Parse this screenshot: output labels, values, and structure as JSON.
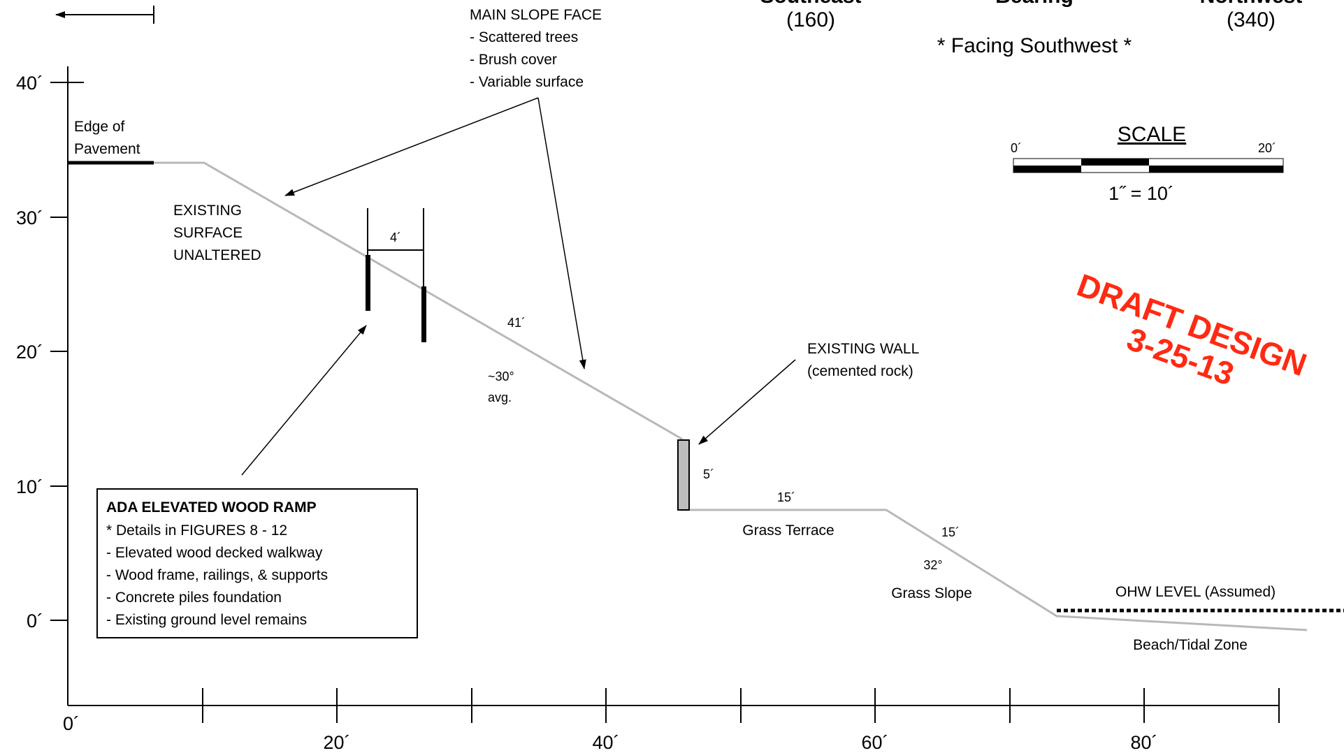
{
  "header": {
    "left_label": "Southeast",
    "left_bearing": "(160)",
    "center_label": "Bearing",
    "right_label": "Northwest",
    "right_bearing": "(340)",
    "facing": "* Facing Southwest *"
  },
  "axes": {
    "y_ticks": [
      "40´",
      "30´",
      "20´",
      "10´",
      "0´"
    ],
    "x_ticks": [
      "0´",
      "20´",
      "40´",
      "60´",
      "80´"
    ]
  },
  "scale": {
    "title": "SCALE",
    "left": "0´",
    "right": "20´",
    "ratio": "1˝ = 10´"
  },
  "stamp": {
    "line1": "DRAFT DESIGN",
    "line2": "3-25-13",
    "color": "#ff2a12"
  },
  "labels": {
    "edge_pavement_1": "Edge of",
    "edge_pavement_2": "Pavement",
    "existing_surface_1": "EXISTING",
    "existing_surface_2": "SURFACE",
    "existing_surface_3": "UNALTERED",
    "main_slope_title": "MAIN SLOPE FACE",
    "main_slope_items": [
      "- Scattered trees",
      "- Brush cover",
      "- Variable surface"
    ],
    "slope_length": "41´",
    "slope_angle": "~30°",
    "slope_angle_sub": "avg.",
    "ramp_width": "4´",
    "wall_title": "EXISTING WALL",
    "wall_sub": "(cemented rock)",
    "wall_height": "5´",
    "terrace_length": "15´",
    "terrace_label": "Grass Terrace",
    "grass_slope_length": "15´",
    "grass_slope_angle": "32°",
    "grass_slope_label": "Grass Slope",
    "ohw_label": "OHW LEVEL  (Assumed)",
    "beach_label": "Beach/Tidal Zone"
  },
  "ada_box": {
    "title": "ADA  ELEVATED  WOOD  RAMP",
    "items": [
      "* Details in FIGURES 8 - 12",
      "- Elevated wood decked walkway",
      "- Wood frame, railings, & supports",
      "- Concrete piles foundation",
      "- Existing ground level remains"
    ]
  },
  "colors": {
    "ground_line": "#b8b8b8",
    "wall_fill": "#bdbdbd",
    "ink": "#000000"
  }
}
